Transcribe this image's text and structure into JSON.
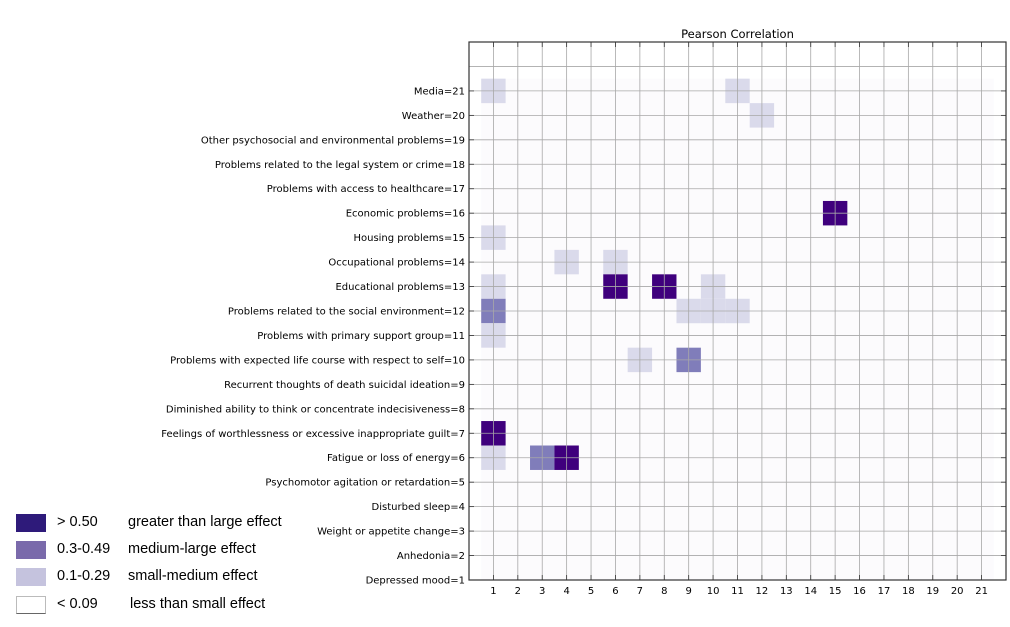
{
  "chart_data": {
    "type": "heatmap",
    "title": "Pearson Correlation",
    "xlabel": "",
    "ylabel": "",
    "xlim": [
      0,
      22
    ],
    "ylim": [
      1,
      23
    ],
    "grid": true,
    "x_ticks": [
      1,
      2,
      3,
      4,
      5,
      6,
      7,
      8,
      9,
      10,
      11,
      12,
      13,
      14,
      15,
      16,
      17,
      18,
      19,
      20,
      21
    ],
    "y_ticks": [
      {
        "value": 1,
        "label": "Depressed mood=1"
      },
      {
        "value": 2,
        "label": "Anhedonia=2"
      },
      {
        "value": 3,
        "label": "Weight or appetite change=3"
      },
      {
        "value": 4,
        "label": "Disturbed sleep=4"
      },
      {
        "value": 5,
        "label": "Psychomotor agitation or retardation=5"
      },
      {
        "value": 6,
        "label": "Fatigue or loss of energy=6"
      },
      {
        "value": 7,
        "label": "Feelings of worthlessness or excessive inappropriate guilt=7"
      },
      {
        "value": 8,
        "label": "Diminished ability to think or concentrate indecisiveness=8"
      },
      {
        "value": 9,
        "label": "Recurrent thoughts of death suicidal ideation=9"
      },
      {
        "value": 10,
        "label": "Problems with expected life course with respect to self=10"
      },
      {
        "value": 11,
        "label": "Problems with primary support group=11"
      },
      {
        "value": 12,
        "label": "Problems related to the social environment=12"
      },
      {
        "value": 13,
        "label": "Educational problems=13"
      },
      {
        "value": 14,
        "label": "Occupational problems=14"
      },
      {
        "value": 15,
        "label": "Housing problems=15"
      },
      {
        "value": 16,
        "label": "Economic problems=16"
      },
      {
        "value": 17,
        "label": "Problems with access to healthcare=17"
      },
      {
        "value": 18,
        "label": "Problems related to the legal system or crime=18"
      },
      {
        "value": 19,
        "label": "Other psychosocial and environmental problems=19"
      },
      {
        "value": 20,
        "label": "Weather=20"
      },
      {
        "value": 21,
        "label": "Media=21"
      }
    ],
    "grid_extent": {
      "x": [
        1,
        21
      ],
      "y": [
        1,
        21
      ]
    },
    "effect_levels": {
      "large": {
        "min": 0.5,
        "color": "#3f007d"
      },
      "medium": {
        "min": 0.3,
        "max": 0.49,
        "color": "#807dba"
      },
      "small": {
        "min": 0.1,
        "max": 0.29,
        "color": "#dadaeb"
      },
      "none": {
        "max": 0.09,
        "color": "#fcfbfd"
      }
    },
    "cells": [
      {
        "x": 1,
        "y": 21,
        "level": "small"
      },
      {
        "x": 11,
        "y": 21,
        "level": "small"
      },
      {
        "x": 12,
        "y": 20,
        "level": "small"
      },
      {
        "x": 15,
        "y": 16,
        "level": "large"
      },
      {
        "x": 1,
        "y": 15,
        "level": "small"
      },
      {
        "x": 4,
        "y": 14,
        "level": "small"
      },
      {
        "x": 6,
        "y": 14,
        "level": "small"
      },
      {
        "x": 1,
        "y": 13,
        "level": "small"
      },
      {
        "x": 6,
        "y": 13,
        "level": "large"
      },
      {
        "x": 8,
        "y": 13,
        "level": "large"
      },
      {
        "x": 10,
        "y": 13,
        "level": "small"
      },
      {
        "x": 1,
        "y": 12,
        "level": "medium"
      },
      {
        "x": 9,
        "y": 12,
        "level": "small"
      },
      {
        "x": 10,
        "y": 12,
        "level": "small"
      },
      {
        "x": 11,
        "y": 12,
        "level": "small"
      },
      {
        "x": 1,
        "y": 11,
        "level": "small"
      },
      {
        "x": 7,
        "y": 10,
        "level": "small"
      },
      {
        "x": 9,
        "y": 10,
        "level": "medium"
      },
      {
        "x": 1,
        "y": 7,
        "level": "large"
      },
      {
        "x": 1,
        "y": 6,
        "level": "small"
      },
      {
        "x": 3,
        "y": 6,
        "level": "medium"
      },
      {
        "x": 4,
        "y": 6,
        "level": "large"
      }
    ]
  },
  "legend": {
    "items": [
      {
        "range": "> 0.50",
        "description": "greater than large effect",
        "color": "#2e1a7a"
      },
      {
        "range": "0.3-0.49",
        "description": "medium-large effect",
        "color": "#7a6aab"
      },
      {
        "range": "0.1-0.29",
        "description": "small-medium effect",
        "color": "#c5c3de"
      },
      {
        "range": "< 0.09",
        "description": "less than small effect",
        "color": "#ffffff"
      }
    ]
  }
}
